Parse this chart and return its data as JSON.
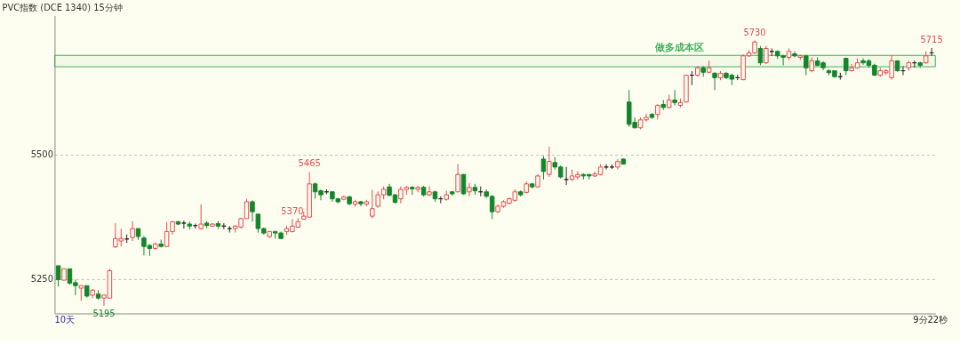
{
  "chart_data": {
    "type": "candlestick",
    "title": "PVC指数 (DCE 1340)  15分钟",
    "categories": [
      null,
      null,
      null,
      null,
      null,
      null,
      null,
      null,
      null,
      null,
      null,
      null,
      null,
      null,
      null,
      null,
      null,
      null,
      null,
      null,
      null,
      null,
      null,
      null,
      null,
      null,
      null,
      null,
      null,
      null,
      null,
      null,
      null,
      null,
      null,
      null,
      null,
      null,
      null,
      null,
      null,
      null,
      null,
      null,
      null,
      null,
      null,
      null,
      null,
      null,
      null,
      null,
      null,
      null,
      null,
      null,
      null,
      null,
      null,
      null,
      null,
      null,
      null,
      null,
      null,
      null,
      null,
      null,
      null,
      null,
      null,
      null,
      null,
      null,
      null,
      null,
      null,
      null,
      null,
      null,
      null,
      null,
      null,
      null,
      null,
      null,
      null,
      null,
      null,
      null,
      null,
      null,
      null,
      null,
      null,
      null,
      null,
      null,
      null,
      null,
      null,
      null,
      null,
      null,
      null,
      null,
      null,
      null,
      null,
      null,
      null,
      null,
      null,
      null,
      null,
      null,
      null,
      null,
      null,
      null,
      null,
      null,
      null,
      null,
      null,
      null,
      null,
      null,
      null,
      null,
      null,
      null,
      null,
      null,
      null,
      null,
      null,
      null,
      null,
      null,
      null,
      null,
      null,
      null,
      null,
      null,
      null,
      null,
      null,
      null,
      null,
      null,
      null,
      null
    ],
    "ohlc": [
      [
        5276,
        5276,
        5234,
        5248
      ],
      [
        5247,
        5270,
        5247,
        5270
      ],
      [
        5270,
        5270,
        5238,
        5241
      ],
      [
        5242,
        5248,
        5217,
        5236
      ],
      [
        5231,
        5236,
        5206,
        5236
      ],
      [
        5236,
        5236,
        5212,
        5215
      ],
      [
        5217,
        5229,
        5211,
        5227
      ],
      [
        5219,
        5227,
        5208,
        5211
      ],
      [
        5211,
        5217,
        5195,
        5217
      ],
      [
        5211,
        5270,
        5211,
        5266
      ],
      [
        5314,
        5362,
        5312,
        5331
      ],
      [
        5326,
        5351,
        5315,
        5331
      ],
      [
        5330,
        5339,
        5322,
        5330
      ],
      [
        5333,
        5366,
        5326,
        5351
      ],
      [
        5351,
        5351,
        5328,
        5335
      ],
      [
        5332,
        5336,
        5297,
        5315
      ],
      [
        5317,
        5320,
        5296,
        5311
      ],
      [
        5311,
        5323,
        5308,
        5320
      ],
      [
        5320,
        5329,
        5313,
        5315
      ],
      [
        5315,
        5364,
        5314,
        5345
      ],
      [
        5345,
        5366,
        5339,
        5365
      ],
      [
        5365,
        5366,
        5358,
        5360
      ],
      [
        5362,
        5367,
        5351,
        5362
      ],
      [
        5360,
        5365,
        5349,
        5356
      ],
      [
        5357,
        5361,
        5351,
        5357
      ],
      [
        5351,
        5400,
        5349,
        5360
      ],
      [
        5362,
        5366,
        5352,
        5357
      ],
      [
        5356,
        5362,
        5354,
        5360
      ],
      [
        5361,
        5366,
        5350,
        5356
      ],
      [
        5356,
        5362,
        5350,
        5356
      ],
      [
        5351,
        5356,
        5343,
        5351
      ],
      [
        5351,
        5358,
        5343,
        5356
      ],
      [
        5354,
        5373,
        5351,
        5371
      ],
      [
        5371,
        5411,
        5371,
        5405
      ],
      [
        5405,
        5408,
        5365,
        5385
      ],
      [
        5380,
        5381,
        5343,
        5351
      ],
      [
        5351,
        5353,
        5339,
        5342
      ],
      [
        5335,
        5346,
        5332,
        5345
      ],
      [
        5345,
        5347,
        5331,
        5342
      ],
      [
        5342,
        5345,
        5330,
        5331
      ],
      [
        5345,
        5357,
        5338,
        5351
      ],
      [
        5345,
        5370,
        5343,
        5356
      ],
      [
        5354,
        5372,
        5352,
        5365
      ],
      [
        5370,
        5385,
        5370,
        5376
      ],
      [
        5374,
        5465,
        5374,
        5441
      ],
      [
        5441,
        5444,
        5411,
        5425
      ],
      [
        5427,
        5430,
        5408,
        5419
      ],
      [
        5425,
        5430,
        5420,
        5425
      ],
      [
        5425,
        5427,
        5405,
        5411
      ],
      [
        5411,
        5413,
        5402,
        5405
      ],
      [
        5410,
        5417,
        5408,
        5415
      ],
      [
        5415,
        5417,
        5398,
        5401
      ],
      [
        5400,
        5409,
        5395,
        5405
      ],
      [
        5405,
        5407,
        5396,
        5401
      ],
      [
        5400,
        5409,
        5396,
        5405
      ],
      [
        5376,
        5429,
        5372,
        5391
      ],
      [
        5396,
        5426,
        5393,
        5419
      ],
      [
        5419,
        5436,
        5410,
        5430
      ],
      [
        5435,
        5441,
        5416,
        5418
      ],
      [
        5419,
        5421,
        5401,
        5404
      ],
      [
        5411,
        5436,
        5402,
        5430
      ],
      [
        5430,
        5437,
        5419,
        5434
      ],
      [
        5434,
        5437,
        5419,
        5431
      ],
      [
        5430,
        5437,
        5424,
        5434
      ],
      [
        5434,
        5437,
        5416,
        5419
      ],
      [
        5419,
        5436,
        5416,
        5425
      ],
      [
        5425,
        5427,
        5405,
        5411
      ],
      [
        5411,
        5416,
        5402,
        5411
      ],
      [
        5410,
        5427,
        5407,
        5419
      ],
      [
        5425,
        5427,
        5417,
        5421
      ],
      [
        5425,
        5481,
        5424,
        5460
      ],
      [
        5460,
        5461,
        5419,
        5421
      ],
      [
        5425,
        5443,
        5416,
        5434
      ],
      [
        5434,
        5441,
        5419,
        5427
      ],
      [
        5425,
        5436,
        5416,
        5425
      ],
      [
        5425,
        5430,
        5413,
        5416
      ],
      [
        5416,
        5418,
        5370,
        5385
      ],
      [
        5385,
        5400,
        5382,
        5396
      ],
      [
        5396,
        5408,
        5393,
        5405
      ],
      [
        5402,
        5414,
        5400,
        5411
      ],
      [
        5408,
        5430,
        5405,
        5425
      ],
      [
        5425,
        5428,
        5416,
        5419
      ],
      [
        5424,
        5446,
        5422,
        5441
      ],
      [
        5441,
        5443,
        5432,
        5435
      ],
      [
        5435,
        5461,
        5433,
        5457
      ],
      [
        5491,
        5497,
        5450,
        5466
      ],
      [
        5460,
        5516,
        5455,
        5486
      ],
      [
        5484,
        5495,
        5470,
        5475
      ],
      [
        5475,
        5478,
        5452,
        5455
      ],
      [
        5450,
        5475,
        5439,
        5450
      ],
      [
        5450,
        5470,
        5447,
        5457
      ],
      [
        5455,
        5467,
        5450,
        5460
      ],
      [
        5460,
        5462,
        5450,
        5457
      ],
      [
        5460,
        5461,
        5450,
        5457
      ],
      [
        5457,
        5466,
        5455,
        5461
      ],
      [
        5460,
        5481,
        5458,
        5475
      ],
      [
        5475,
        5481,
        5470,
        5475
      ],
      [
        5475,
        5480,
        5471,
        5475
      ],
      [
        5475,
        5491,
        5470,
        5486
      ],
      [
        5491,
        5492,
        5480,
        5481
      ],
      [
        5606,
        5630,
        5556,
        5561
      ],
      [
        5565,
        5575,
        5553,
        5554
      ],
      [
        5554,
        5575,
        5551,
        5570
      ],
      [
        5570,
        5582,
        5567,
        5575
      ],
      [
        5581,
        5584,
        5572,
        5575
      ],
      [
        5581,
        5602,
        5571,
        5599
      ],
      [
        5601,
        5610,
        5590,
        5595
      ],
      [
        5595,
        5621,
        5593,
        5610
      ],
      [
        5610,
        5630,
        5599,
        5605
      ],
      [
        5599,
        5613,
        5595,
        5605
      ],
      [
        5606,
        5661,
        5605,
        5660
      ],
      [
        5660,
        5668,
        5640,
        5660
      ],
      [
        5660,
        5678,
        5657,
        5675
      ],
      [
        5675,
        5678,
        5657,
        5666
      ],
      [
        5666,
        5689,
        5665,
        5675
      ],
      [
        5664,
        5666,
        5630,
        5655
      ],
      [
        5655,
        5668,
        5650,
        5664
      ],
      [
        5664,
        5666,
        5652,
        5655
      ],
      [
        5660,
        5663,
        5640,
        5652
      ],
      [
        5655,
        5661,
        5650,
        5655
      ],
      [
        5651,
        5702,
        5650,
        5699
      ],
      [
        5699,
        5711,
        5697,
        5705
      ],
      [
        5705,
        5730,
        5703,
        5727
      ],
      [
        5714,
        5719,
        5680,
        5685
      ],
      [
        5685,
        5719,
        5683,
        5714
      ],
      [
        5708,
        5714,
        5699,
        5708
      ],
      [
        5708,
        5710,
        5693,
        5699
      ],
      [
        5699,
        5701,
        5680,
        5696
      ],
      [
        5696,
        5714,
        5691,
        5708
      ],
      [
        5703,
        5708,
        5696,
        5699
      ],
      [
        5696,
        5701,
        5691,
        5699
      ],
      [
        5699,
        5700,
        5660,
        5675
      ],
      [
        5669,
        5696,
        5666,
        5689
      ],
      [
        5689,
        5696,
        5678,
        5680
      ],
      [
        5685,
        5688,
        5670,
        5675
      ],
      [
        5669,
        5672,
        5660,
        5665
      ],
      [
        5669,
        5670,
        5655,
        5657
      ],
      [
        5657,
        5665,
        5651,
        5657
      ],
      [
        5694,
        5695,
        5660,
        5669
      ],
      [
        5669,
        5683,
        5667,
        5675
      ],
      [
        5675,
        5694,
        5673,
        5685
      ],
      [
        5689,
        5694,
        5681,
        5685
      ],
      [
        5689,
        5692,
        5675,
        5680
      ],
      [
        5680,
        5683,
        5658,
        5660
      ],
      [
        5660,
        5675,
        5657,
        5669
      ],
      [
        5665,
        5672,
        5660,
        5669
      ],
      [
        5655,
        5700,
        5651,
        5689
      ],
      [
        5689,
        5690,
        5667,
        5669
      ],
      [
        5669,
        5678,
        5660,
        5669
      ],
      [
        5675,
        5689,
        5669,
        5685
      ],
      [
        5685,
        5689,
        5675,
        5685
      ],
      [
        5685,
        5687,
        5675,
        5680
      ],
      [
        5685,
        5708,
        5683,
        5699
      ],
      [
        5705,
        5715,
        5699,
        5705
      ]
    ],
    "ylim": [
      5180,
      5780
    ],
    "yticks": [
      5250,
      5500
    ],
    "grid": "y",
    "tick_labels": "y",
    "bands": [
      {
        "axis": "y",
        "from": 5677,
        "to": 5700,
        "label": "做多成本区",
        "color": "#3cb05a"
      }
    ],
    "annotations": [
      {
        "text": "5195",
        "y": 5195
      },
      {
        "text": "5465",
        "y": 5465
      },
      {
        "text": "5370",
        "y": 5370
      },
      {
        "text": "5730",
        "y": 5730
      },
      {
        "text": "5715",
        "y": 5715
      },
      "10天",
      "9分22秒"
    ]
  }
}
